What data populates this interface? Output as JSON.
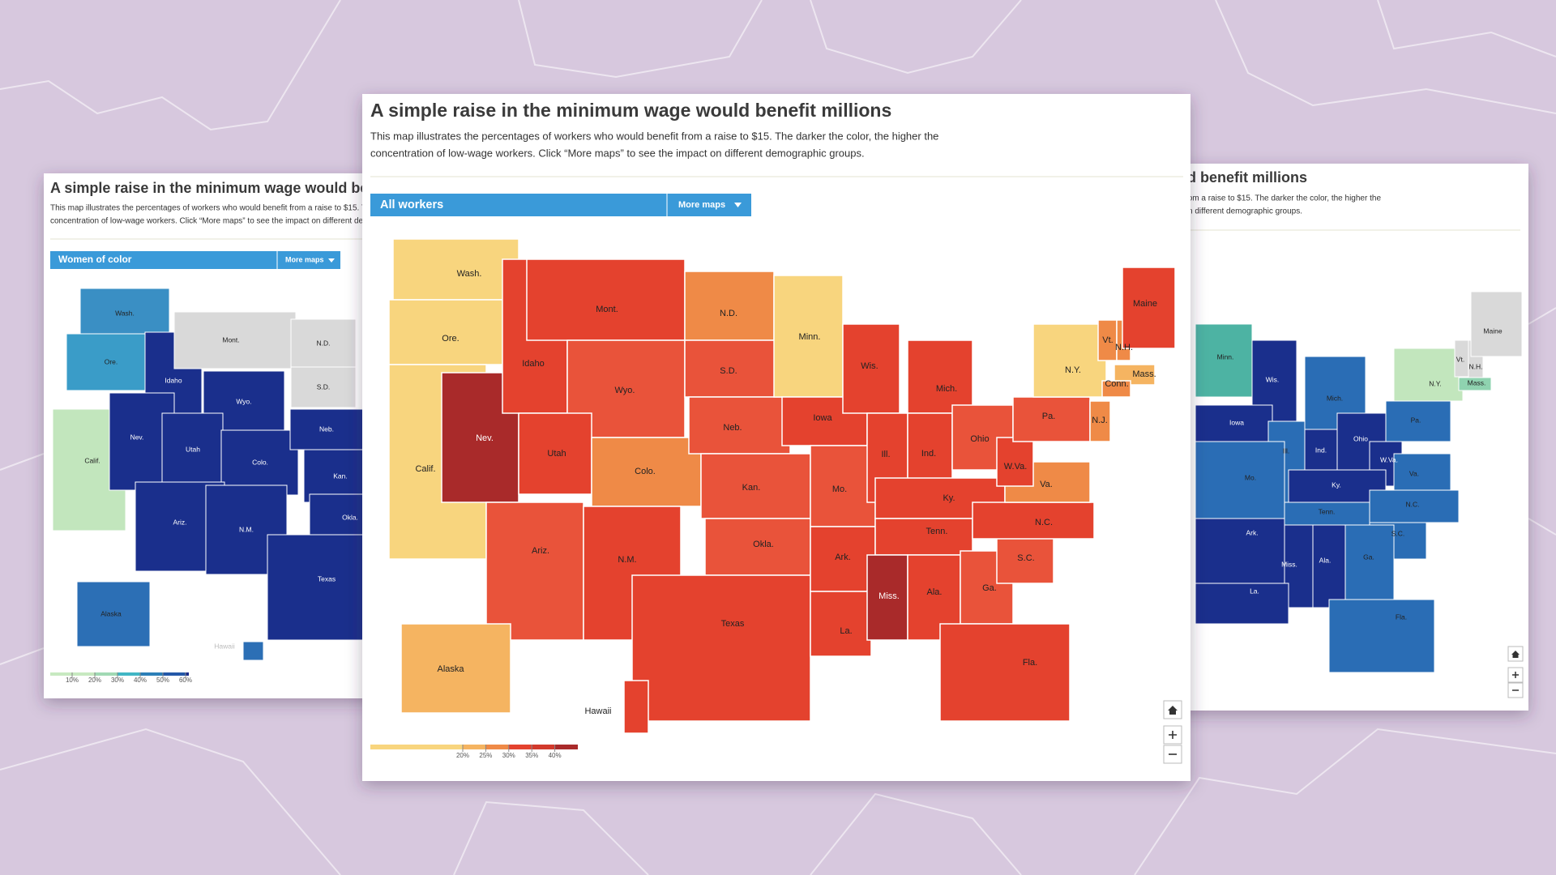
{
  "panels": [
    {
      "title": "A simple raise in the minimum wage would benefit millions",
      "description": [
        "This map illustrates the percentages of workers who would benefit from a raise to $15. The darker the color, the higher the",
        "concentration of low-wage workers. Click “More maps” to see the impact on different demographic groups."
      ],
      "selector": "Women of color",
      "menu": "More maps",
      "states": [
        {
          "label": "Wash.",
          "color": "#3a8fc4"
        },
        {
          "label": "Ore.",
          "color": "#3a9cc8"
        },
        {
          "label": "Calif.",
          "color": "#c2e6bd"
        },
        {
          "label": "Idaho",
          "color": "#1a2f8c"
        },
        {
          "label": "Nev.",
          "color": "#1a2f8c"
        },
        {
          "label": "Mont.",
          "color": "#d9d9d9"
        },
        {
          "label": "N.D.",
          "color": "#d9d9d9"
        },
        {
          "label": "S.D.",
          "color": "#d9d9d9"
        },
        {
          "label": "Wyo.",
          "color": "#1a2f8c"
        },
        {
          "label": "Utah",
          "color": "#1a2f8c"
        },
        {
          "label": "Colo.",
          "color": "#1a2f8c"
        },
        {
          "label": "Neb.",
          "color": "#1a2f8c"
        },
        {
          "label": "Kan.",
          "color": "#1a2f8c"
        },
        {
          "label": "Ariz.",
          "color": "#1a2f8c"
        },
        {
          "label": "N.M.",
          "color": "#1a2f8c"
        },
        {
          "label": "Okla.",
          "color": "#1a2f8c"
        },
        {
          "label": "Texas",
          "color": "#1a2f8c"
        },
        {
          "label": "Alaska",
          "color": "#2c6fb5"
        },
        {
          "label": "Hawaii",
          "color": "#2c6fb5"
        }
      ],
      "legend": {
        "colors": [
          "#c7e9c0",
          "#a1d9b4",
          "#41b6c4",
          "#2c7fb8",
          "#2458a8",
          "#1a2c8a"
        ],
        "ticks": [
          "10%",
          "20%",
          "30%",
          "40%",
          "50%",
          "60%"
        ]
      }
    },
    {
      "title": "A simple raise in the minimum wage would benefit millions",
      "description": [
        "This map illustrates the percentages of workers who would benefit from a raise to $15. The darker the color, the higher the",
        "concentration of low-wage workers. Click “More maps” to see the impact on different demographic groups."
      ],
      "states": [
        {
          "label": "Minn.",
          "color": "#4db3a3"
        },
        {
          "label": "Wis.",
          "color": "#1a2f8c"
        },
        {
          "label": "Mich.",
          "color": "#2a6db5"
        },
        {
          "label": "Iowa",
          "color": "#1a2f8c"
        },
        {
          "label": "Ill.",
          "color": "#2a6db5"
        },
        {
          "label": "Ind.",
          "color": "#1a2f8c"
        },
        {
          "label": "Ohio",
          "color": "#1a2f8c"
        },
        {
          "label": "Pa.",
          "color": "#2a6db5"
        },
        {
          "label": "N.Y.",
          "color": "#c2e6bd"
        },
        {
          "label": "Vt.",
          "color": "#d9d9d9"
        },
        {
          "label": "N.H.",
          "color": "#d9d9d9"
        },
        {
          "label": "Maine",
          "color": "#d9d9d9"
        },
        {
          "label": "Mass.",
          "color": "#8fd3b0"
        },
        {
          "label": "W.Va.",
          "color": "#1a2f8c"
        },
        {
          "label": "Va.",
          "color": "#2a6db5"
        },
        {
          "label": "Ky.",
          "color": "#1a2f8c"
        },
        {
          "label": "Mo.",
          "color": "#2a6db5"
        },
        {
          "label": "Tenn.",
          "color": "#2a6db5"
        },
        {
          "label": "N.C.",
          "color": "#2a6db5"
        },
        {
          "label": "S.C.",
          "color": "#2a6db5"
        },
        {
          "label": "Ark.",
          "color": "#1a2f8c"
        },
        {
          "label": "Miss.",
          "color": "#1a2f8c"
        },
        {
          "label": "Ala.",
          "color": "#1a2f8c"
        },
        {
          "label": "Ga.",
          "color": "#2a6db5"
        },
        {
          "label": "La.",
          "color": "#1a2f8c"
        },
        {
          "label": "Fla.",
          "color": "#2a6db5"
        }
      ]
    },
    {
      "title": "A simple raise in the minimum wage would benefit millions",
      "description": [
        "This map illustrates the percentages of workers who would benefit from a raise to $15. The darker the color, the higher the",
        "concentration of low-wage workers. Click “More maps” to see the impact on different demographic groups."
      ],
      "selector": "All workers",
      "menu": "More maps",
      "states": [
        {
          "label": "Wash.",
          "color": "#f8d57e"
        },
        {
          "label": "Ore.",
          "color": "#f8d57e"
        },
        {
          "label": "Calif.",
          "color": "#f8d57e"
        },
        {
          "label": "Nev.",
          "color": "#a92a2a"
        },
        {
          "label": "Idaho",
          "color": "#e4422e"
        },
        {
          "label": "Mont.",
          "color": "#e4422e"
        },
        {
          "label": "Wyo.",
          "color": "#e9533a"
        },
        {
          "label": "Utah",
          "color": "#e4422e"
        },
        {
          "label": "Colo.",
          "color": "#ef8a47"
        },
        {
          "label": "Ariz.",
          "color": "#e9533a"
        },
        {
          "label": "N.M.",
          "color": "#e4422e"
        },
        {
          "label": "N.D.",
          "color": "#ef8a47"
        },
        {
          "label": "S.D.",
          "color": "#e9533a"
        },
        {
          "label": "Neb.",
          "color": "#e9533a"
        },
        {
          "label": "Kan.",
          "color": "#e9533a"
        },
        {
          "label": "Okla.",
          "color": "#e9533a"
        },
        {
          "label": "Texas",
          "color": "#e4422e"
        },
        {
          "label": "Minn.",
          "color": "#f8d57e"
        },
        {
          "label": "Iowa",
          "color": "#e4422e"
        },
        {
          "label": "Mo.",
          "color": "#e9533a"
        },
        {
          "label": "Ark.",
          "color": "#e4422e"
        },
        {
          "label": "La.",
          "color": "#e4422e"
        },
        {
          "label": "Wis.",
          "color": "#e4422e"
        },
        {
          "label": "Ill.",
          "color": "#e4422e"
        },
        {
          "label": "Mich.",
          "color": "#e4422e"
        },
        {
          "label": "Ind.",
          "color": "#e4422e"
        },
        {
          "label": "Ohio",
          "color": "#e9533a"
        },
        {
          "label": "Ky.",
          "color": "#e4422e"
        },
        {
          "label": "Tenn.",
          "color": "#e4422e"
        },
        {
          "label": "Miss.",
          "color": "#a92a2a"
        },
        {
          "label": "Ala.",
          "color": "#e4422e"
        },
        {
          "label": "Ga.",
          "color": "#e9533a"
        },
        {
          "label": "Fla.",
          "color": "#e4422e"
        },
        {
          "label": "S.C.",
          "color": "#e9533a"
        },
        {
          "label": "N.C.",
          "color": "#e4422e"
        },
        {
          "label": "Va.",
          "color": "#ef8a47"
        },
        {
          "label": "W.Va.",
          "color": "#e4422e"
        },
        {
          "label": "Pa.",
          "color": "#e9533a"
        },
        {
          "label": "N.Y.",
          "color": "#f8d57e"
        },
        {
          "label": "Vt.",
          "color": "#ef8a47"
        },
        {
          "label": "N.H.",
          "color": "#ef8a47"
        },
        {
          "label": "Maine",
          "color": "#e4422e"
        },
        {
          "label": "Mass.",
          "color": "#f5b461"
        },
        {
          "label": "Conn.",
          "color": "#ef8a47"
        },
        {
          "label": "N.J.",
          "color": "#ef8a47"
        },
        {
          "label": "Alaska",
          "color": "#f5b461"
        },
        {
          "label": "Hawaii",
          "color": "#e4422e"
        }
      ],
      "legend": {
        "colors": [
          "#f8d57e",
          "#f5b461",
          "#ef8a47",
          "#e4422e",
          "#d23a2c",
          "#a92a2a"
        ],
        "ticks": [
          "20%",
          "25%",
          "30%",
          "35%",
          "40%"
        ]
      }
    }
  ]
}
